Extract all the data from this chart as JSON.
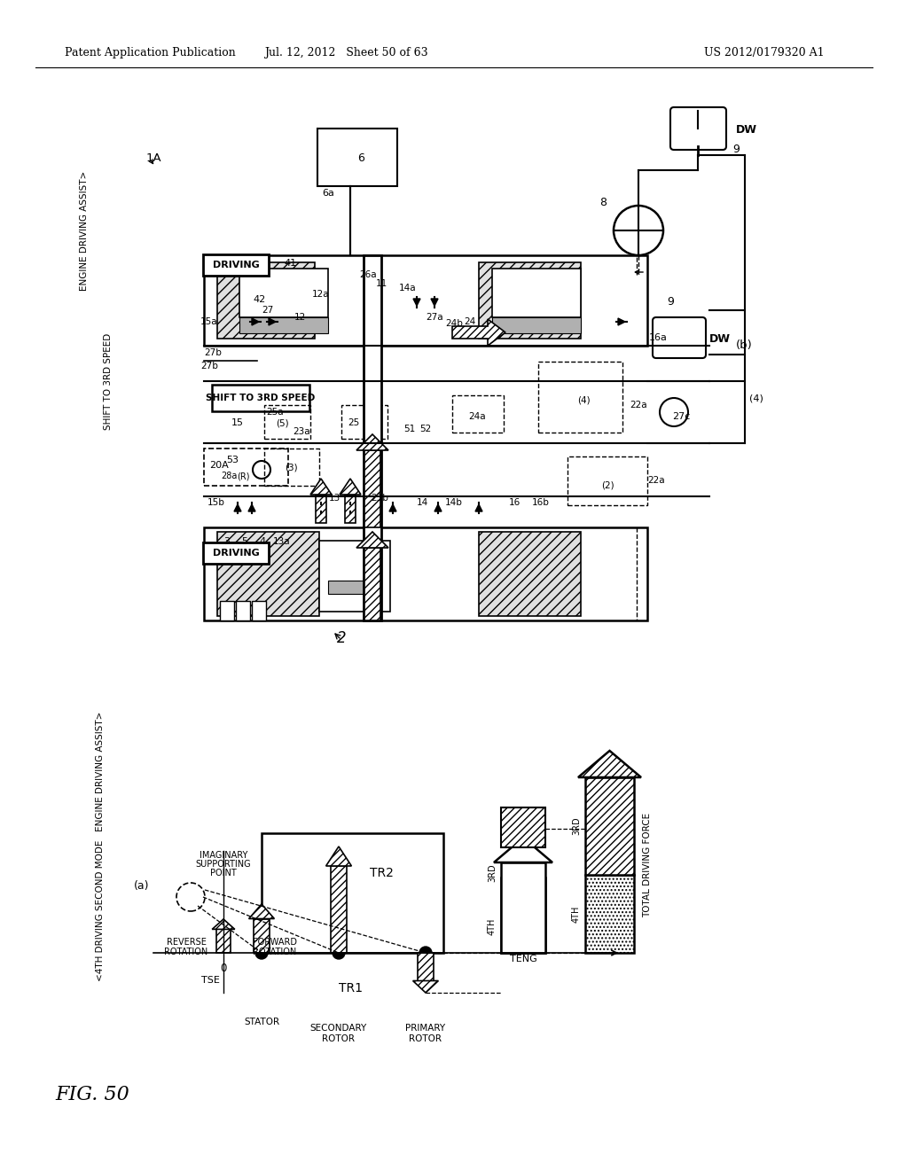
{
  "bg_color": "#ffffff",
  "header_left": "Patent Application Publication",
  "header_center": "Jul. 12, 2012   Sheet 50 of 63",
  "header_right": "US 2012/0179320 A1",
  "fig_label": "FIG. 50"
}
